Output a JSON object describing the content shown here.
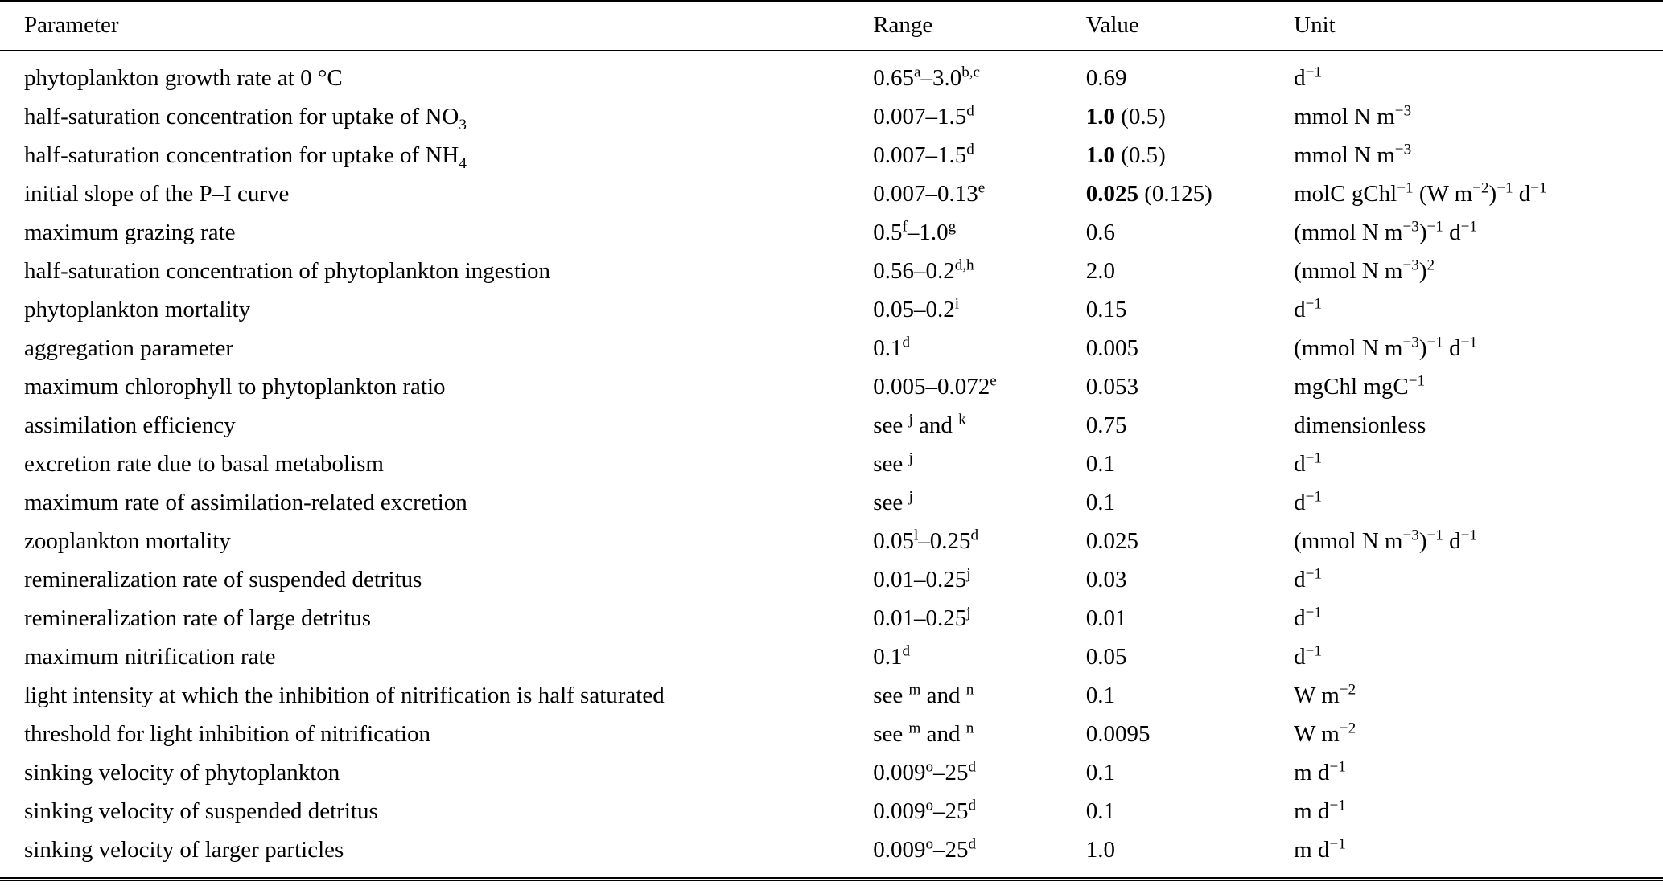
{
  "colors": {
    "background": "#ffffff",
    "text": "#000000",
    "rule": "#000000"
  },
  "table": {
    "columns": [
      "Parameter",
      "Range",
      "Value",
      "Unit"
    ],
    "rows": [
      {
        "parameter": "phytoplankton growth rate at 0 °C",
        "range": "0.65^{a}–3.0^{b,c}",
        "value": "0.69",
        "unit": "d^{−1}"
      },
      {
        "parameter": "half-saturation concentration for uptake of NO_{3}",
        "range": "0.007–1.5^{d}",
        "value": "**1.0** (0.5)",
        "unit": "mmol N m^{−3}"
      },
      {
        "parameter": "half-saturation concentration for uptake of NH_{4}",
        "range": "0.007–1.5^{d}",
        "value": "**1.0** (0.5)",
        "unit": "mmol N m^{−3}"
      },
      {
        "parameter": "initial slope of the P–I curve",
        "range": "0.007–0.13^{e}",
        "value": "**0.025** (0.125)",
        "unit": "molC gChl^{−1} (W m^{−2})^{−1} d^{−1}"
      },
      {
        "parameter": "maximum grazing rate",
        "range": "0.5^{f}–1.0^{g}",
        "value": "0.6",
        "unit": "(mmol N m^{−3})^{−1} d^{−1}"
      },
      {
        "parameter": "half-saturation concentration of phytoplankton ingestion",
        "range": "0.56–0.2^{d,h}",
        "value": "2.0",
        "unit": "(mmol N m^{−3})^{2}"
      },
      {
        "parameter": "phytoplankton mortality",
        "range": "0.05–0.2^{i}",
        "value": "0.15",
        "unit": "d^{−1}"
      },
      {
        "parameter": "aggregation parameter",
        "range": "0.1^{d}",
        "value": "0.005",
        "unit": "(mmol N m^{−3})^{−1} d^{−1}"
      },
      {
        "parameter": "maximum chlorophyll to phytoplankton ratio",
        "range": "0.005–0.072^{e}",
        "value": "0.053",
        "unit": "mgChl mgC^{−1}"
      },
      {
        "parameter": "assimilation efficiency",
        "range": "see ^{j} and ^{k}",
        "value": "0.75",
        "unit": "dimensionless"
      },
      {
        "parameter": "excretion rate due to basal metabolism",
        "range": "see ^{j}",
        "value": "0.1",
        "unit": "d^{−1}"
      },
      {
        "parameter": "maximum rate of assimilation-related excretion",
        "range": "see ^{j}",
        "value": "0.1",
        "unit": "d^{−1}"
      },
      {
        "parameter": "zooplankton mortality",
        "range": "0.05^{l}–0.25^{d}",
        "value": "0.025",
        "unit": "(mmol N m^{−3})^{−1} d^{−1}"
      },
      {
        "parameter": "remineralization rate of suspended detritus",
        "range": "0.01–0.25^{j}",
        "value": "0.03",
        "unit": "d^{−1}"
      },
      {
        "parameter": "remineralization rate of large detritus",
        "range": "0.01–0.25^{j}",
        "value": "0.01",
        "unit": "d^{−1}"
      },
      {
        "parameter": "maximum nitrification rate",
        "range": "0.1^{d}",
        "value": "0.05",
        "unit": "d^{−1}"
      },
      {
        "parameter": "light intensity at which the inhibition of nitrification is half saturated",
        "range": "see ^{m} and ^{n}",
        "value": "0.1",
        "unit": "W m^{−2}"
      },
      {
        "parameter": "threshold for light inhibition of nitrification",
        "range": "see ^{m} and ^{n}",
        "value": "0.0095",
        "unit": "W m^{−2}"
      },
      {
        "parameter": "sinking velocity of phytoplankton",
        "range": "0.009^{o}–25^{d}",
        "value": "0.1",
        "unit": "m d^{−1}"
      },
      {
        "parameter": "sinking velocity of suspended detritus",
        "range": "0.009^{o}–25^{d}",
        "value": "0.1",
        "unit": "m d^{−1}"
      },
      {
        "parameter": "sinking velocity of larger particles",
        "range": "0.009^{o}–25^{d}",
        "value": "1.0",
        "unit": "m d^{−1}"
      }
    ]
  }
}
